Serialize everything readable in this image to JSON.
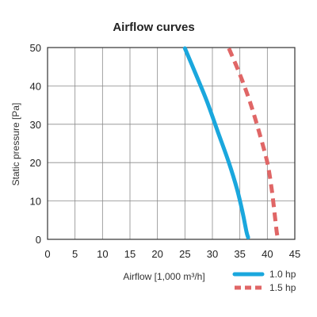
{
  "chart_data": {
    "type": "line",
    "title": "Airflow curves",
    "xlabel": "Airflow [1,000 m³/h]",
    "ylabel": "Static pressure  [Pa]",
    "xlim": [
      0,
      45
    ],
    "ylim": [
      0,
      50
    ],
    "x_ticks": [
      "0",
      "5",
      "10",
      "15",
      "20",
      "25",
      "30",
      "35",
      "40",
      "45"
    ],
    "y_ticks": [
      "0",
      "10",
      "20",
      "30",
      "40",
      "50"
    ],
    "grid": true,
    "legend_position": "bottom-right",
    "series": [
      {
        "name": "1.0 hp",
        "color": "#1aa7dd",
        "style": "solid",
        "points": [
          [
            25,
            49.8
          ],
          [
            27,
            43
          ],
          [
            29,
            36
          ],
          [
            31,
            28
          ],
          [
            33,
            20
          ],
          [
            34.5,
            13
          ],
          [
            35.5,
            7
          ],
          [
            36.2,
            2
          ],
          [
            36.5,
            0.5
          ]
        ]
      },
      {
        "name": "1.5 hp",
        "color": "#e06666",
        "style": "dashed",
        "points": [
          [
            33,
            49.8
          ],
          [
            35,
            43
          ],
          [
            36.8,
            36
          ],
          [
            38.5,
            28
          ],
          [
            40,
            20
          ],
          [
            40.8,
            13
          ],
          [
            41.3,
            7
          ],
          [
            41.7,
            2
          ],
          [
            41.9,
            0.5
          ]
        ]
      }
    ]
  }
}
